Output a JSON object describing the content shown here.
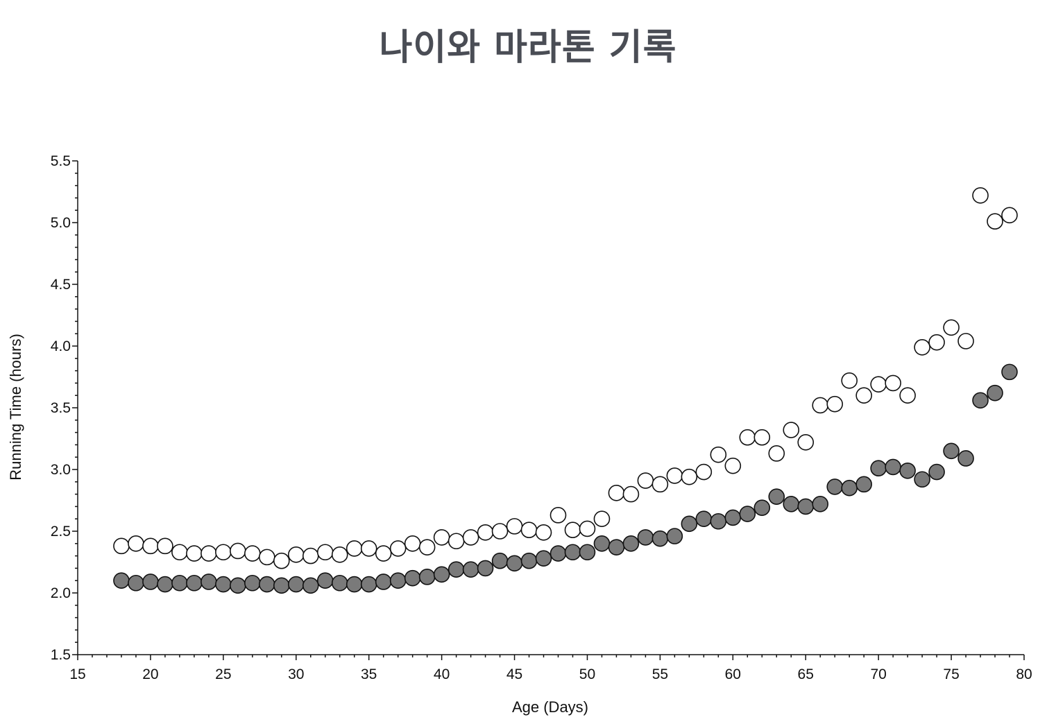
{
  "title": "나이와 마라톤 기록",
  "chart_data": {
    "type": "scatter",
    "title": "나이와 마라톤 기록",
    "xlabel": "Age (Days)",
    "ylabel": "Running Time (hours)",
    "xlim": [
      15,
      80
    ],
    "ylim": [
      1.5,
      5.5
    ],
    "x_ticks": [
      "15",
      "20",
      "25",
      "30",
      "35",
      "40",
      "45",
      "50",
      "55",
      "60",
      "65",
      "70",
      "75",
      "80"
    ],
    "y_ticks": [
      "1.5",
      "2.0",
      "2.5",
      "3.0",
      "3.5",
      "4.0",
      "4.5",
      "5.0",
      "5.5"
    ],
    "grid": false,
    "legend": "none",
    "series": [
      {
        "marker": "open-circle",
        "color": "#ffffff",
        "points": [
          [
            18,
            2.38
          ],
          [
            19,
            2.4
          ],
          [
            20,
            2.38
          ],
          [
            21,
            2.38
          ],
          [
            22,
            2.33
          ],
          [
            23,
            2.32
          ],
          [
            24,
            2.32
          ],
          [
            25,
            2.33
          ],
          [
            26,
            2.34
          ],
          [
            27,
            2.32
          ],
          [
            28,
            2.29
          ],
          [
            29,
            2.26
          ],
          [
            30,
            2.31
          ],
          [
            31,
            2.3
          ],
          [
            32,
            2.33
          ],
          [
            33,
            2.31
          ],
          [
            34,
            2.36
          ],
          [
            35,
            2.36
          ],
          [
            36,
            2.32
          ],
          [
            37,
            2.36
          ],
          [
            38,
            2.4
          ],
          [
            39,
            2.37
          ],
          [
            40,
            2.45
          ],
          [
            41,
            2.42
          ],
          [
            42,
            2.45
          ],
          [
            43,
            2.49
          ],
          [
            44,
            2.5
          ],
          [
            45,
            2.54
          ],
          [
            46,
            2.51
          ],
          [
            47,
            2.49
          ],
          [
            48,
            2.63
          ],
          [
            49,
            2.51
          ],
          [
            50,
            2.52
          ],
          [
            51,
            2.6
          ],
          [
            52,
            2.81
          ],
          [
            53,
            2.8
          ],
          [
            54,
            2.91
          ],
          [
            55,
            2.88
          ],
          [
            56,
            2.95
          ],
          [
            57,
            2.94
          ],
          [
            58,
            2.98
          ],
          [
            59,
            3.12
          ],
          [
            60,
            3.03
          ],
          [
            61,
            3.26
          ],
          [
            62,
            3.26
          ],
          [
            63,
            3.13
          ],
          [
            64,
            3.32
          ],
          [
            65,
            3.22
          ],
          [
            66,
            3.52
          ],
          [
            67,
            3.53
          ],
          [
            68,
            3.72
          ],
          [
            69,
            3.6
          ],
          [
            70,
            3.69
          ],
          [
            71,
            3.7
          ],
          [
            72,
            3.6
          ],
          [
            73,
            3.99
          ],
          [
            74,
            4.03
          ],
          [
            75,
            4.15
          ],
          [
            76,
            4.04
          ],
          [
            77,
            5.22
          ],
          [
            78,
            5.01
          ],
          [
            79,
            5.06
          ]
        ]
      },
      {
        "marker": "filled-circle",
        "color": "#7a7a7a",
        "points": [
          [
            18,
            2.1
          ],
          [
            19,
            2.08
          ],
          [
            20,
            2.09
          ],
          [
            21,
            2.07
          ],
          [
            22,
            2.08
          ],
          [
            23,
            2.08
          ],
          [
            24,
            2.09
          ],
          [
            25,
            2.07
          ],
          [
            26,
            2.06
          ],
          [
            27,
            2.08
          ],
          [
            28,
            2.07
          ],
          [
            29,
            2.06
          ],
          [
            30,
            2.07
          ],
          [
            31,
            2.06
          ],
          [
            32,
            2.1
          ],
          [
            33,
            2.08
          ],
          [
            34,
            2.07
          ],
          [
            35,
            2.07
          ],
          [
            36,
            2.09
          ],
          [
            37,
            2.1
          ],
          [
            38,
            2.12
          ],
          [
            39,
            2.13
          ],
          [
            40,
            2.15
          ],
          [
            41,
            2.19
          ],
          [
            42,
            2.19
          ],
          [
            43,
            2.2
          ],
          [
            44,
            2.26
          ],
          [
            45,
            2.24
          ],
          [
            46,
            2.26
          ],
          [
            47,
            2.28
          ],
          [
            48,
            2.32
          ],
          [
            49,
            2.33
          ],
          [
            50,
            2.33
          ],
          [
            51,
            2.4
          ],
          [
            52,
            2.37
          ],
          [
            53,
            2.4
          ],
          [
            54,
            2.45
          ],
          [
            55,
            2.44
          ],
          [
            56,
            2.46
          ],
          [
            57,
            2.56
          ],
          [
            58,
            2.6
          ],
          [
            59,
            2.58
          ],
          [
            60,
            2.61
          ],
          [
            61,
            2.64
          ],
          [
            62,
            2.69
          ],
          [
            63,
            2.78
          ],
          [
            64,
            2.72
          ],
          [
            65,
            2.7
          ],
          [
            66,
            2.72
          ],
          [
            67,
            2.86
          ],
          [
            68,
            2.85
          ],
          [
            69,
            2.88
          ],
          [
            70,
            3.01
          ],
          [
            71,
            3.02
          ],
          [
            72,
            2.99
          ],
          [
            73,
            2.92
          ],
          [
            74,
            2.98
          ],
          [
            75,
            3.15
          ],
          [
            76,
            3.09
          ],
          [
            77,
            3.56
          ],
          [
            78,
            3.62
          ],
          [
            79,
            3.79
          ]
        ]
      }
    ]
  }
}
